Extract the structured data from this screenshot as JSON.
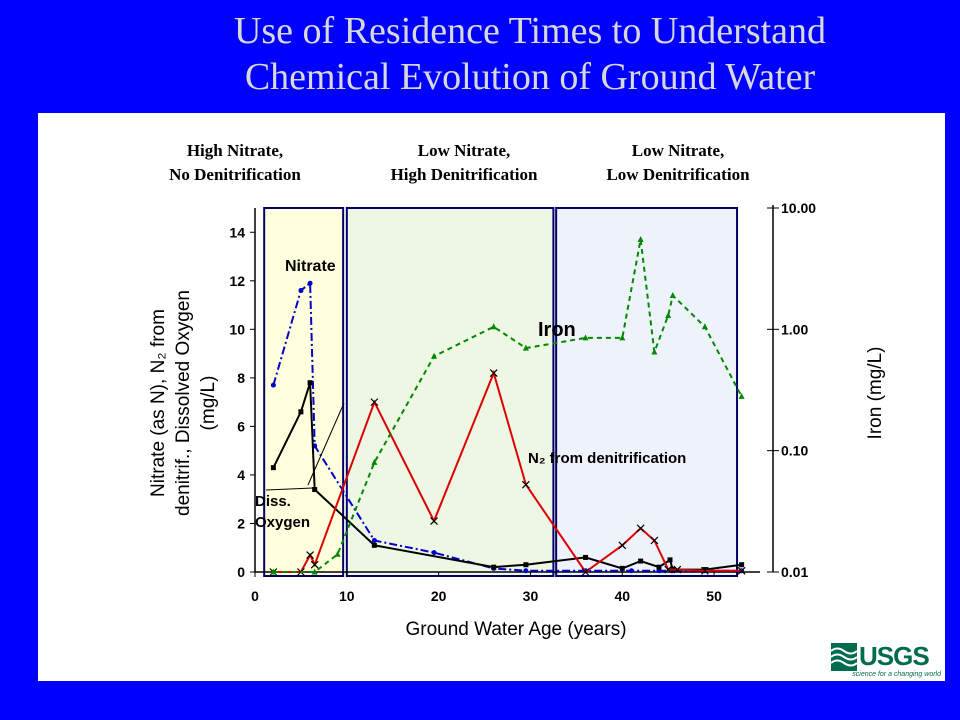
{
  "slide": {
    "title_line1": "Use of Residence Times to Understand",
    "title_line2": "Chemical Evolution of Ground Water"
  },
  "regions": [
    {
      "line1": "High Nitrate,",
      "line2": "No Denitrification",
      "fill": "#ffffdd"
    },
    {
      "line1": "Low Nitrate,",
      "line2": "High Denitrification",
      "fill": "#eef6e4"
    },
    {
      "line1": "Low Nitrate,",
      "line2": "Low Denitrification",
      "fill": "#eef2fb"
    }
  ],
  "logo": {
    "word": "USGS",
    "tagline": "science for a changing world",
    "color": "#006c4f"
  },
  "chart_data": {
    "type": "line",
    "xlabel": "Ground Water Age (years)",
    "ylabel_line1": "Nitrate (as N), N₂ from",
    "ylabel_line2": "denitrif., Dissolved Oxygen",
    "ylabel_line3": "(mg/L)",
    "y2label": "Iron (mg/L)",
    "xlim": [
      0,
      55
    ],
    "ylim": [
      0,
      15
    ],
    "y2lim": [
      0.01,
      10
    ],
    "y2scale": "log",
    "x_ticks": [
      "0",
      "10",
      "20",
      "30",
      "40",
      "50"
    ],
    "y_ticks": [
      "0",
      "2",
      "4",
      "6",
      "8",
      "10",
      "12",
      "14"
    ],
    "y2_ticks": [
      "0.01",
      "0.10",
      "1.00",
      "10.00"
    ],
    "region_bounds": [
      [
        1,
        9.6
      ],
      [
        10,
        32.5
      ],
      [
        32.8,
        52.5
      ]
    ],
    "annotations": {
      "nitrate": "Nitrate",
      "diss_oxygen_line1": "Diss.",
      "diss_oxygen_line2": "Oxygen",
      "iron": "Iron",
      "n2": "N₂ from denitrification"
    },
    "series": [
      {
        "key": "nitrate",
        "axis": "left",
        "color": "#0000cc",
        "dash": "8 3 2 3",
        "marker": "dot",
        "x": [
          2,
          5,
          6,
          6.5,
          13,
          19.5,
          26,
          29.5,
          36,
          41,
          44,
          45.5,
          49,
          53
        ],
        "y": [
          7.7,
          11.6,
          11.9,
          5.2,
          1.3,
          0.8,
          0.15,
          0.05,
          0.05,
          0.05,
          0.05,
          0.05,
          0.05,
          0.05
        ]
      },
      {
        "key": "dissolved_oxygen",
        "axis": "left",
        "color": "#000000",
        "dash": "",
        "marker": "square",
        "x": [
          2,
          5,
          6,
          6.5,
          13,
          26,
          29.5,
          36,
          40,
          42,
          44,
          45.2,
          45.5,
          49,
          53
        ],
        "y": [
          4.3,
          6.6,
          7.8,
          3.4,
          1.1,
          0.2,
          0.3,
          0.6,
          0.15,
          0.45,
          0.2,
          0.5,
          0.1,
          0.1,
          0.3
        ]
      },
      {
        "key": "n2_from_denitrification",
        "axis": "left",
        "color": "#dd0000",
        "dash": "",
        "marker": "x",
        "x": [
          2,
          5,
          6,
          6.5,
          13,
          19.5,
          26,
          29.5,
          36,
          40,
          42,
          43.5,
          45,
          46,
          49,
          53
        ],
        "y": [
          0,
          0,
          0.7,
          0.3,
          7,
          2.1,
          8.2,
          3.6,
          0,
          1.1,
          1.8,
          1.3,
          0.1,
          0.1,
          0.05,
          0.05
        ]
      },
      {
        "key": "iron",
        "axis": "right",
        "color": "#008800",
        "dash": "5 4",
        "marker": "triangle",
        "x": [
          2,
          6.5,
          9,
          13,
          19.5,
          26,
          29.5,
          36,
          40,
          42,
          43.5,
          45,
          45.5,
          49,
          53
        ],
        "y": [
          0.01,
          0.01,
          0.014,
          0.08,
          0.6,
          1.05,
          0.7,
          0.85,
          0.85,
          5.5,
          0.65,
          1.3,
          1.9,
          1.05,
          0.28
        ]
      }
    ]
  }
}
